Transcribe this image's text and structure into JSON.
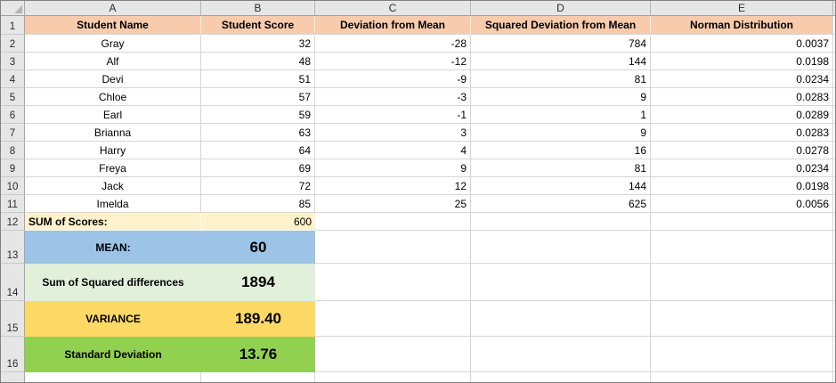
{
  "app": "spreadsheet",
  "colors": {
    "header_fill": "#F8CBAD",
    "sum_fill": "#FFF2CC",
    "mean_fill": "#9DC3E6",
    "squared_diff_fill": "#E2EFDA",
    "variance_fill": "#FFD966",
    "stdev_fill": "#92D050",
    "gutter_fill": "#E6E6E6",
    "gridline": "#D6D6D6"
  },
  "columns": [
    "A",
    "B",
    "C",
    "D",
    "E"
  ],
  "row_numbers": [
    "1",
    "2",
    "3",
    "4",
    "5",
    "6",
    "7",
    "8",
    "9",
    "10",
    "11",
    "12",
    "13",
    "14",
    "15",
    "16"
  ],
  "table": {
    "headers": [
      "Student Name",
      "Student Score",
      "Deviation from Mean",
      "Squared Deviation from Mean",
      "Norman Distribution"
    ],
    "rows": [
      {
        "name": "Gray",
        "score": "32",
        "deviation": "-28",
        "squared": "784",
        "normal": "0.0037"
      },
      {
        "name": "Alf",
        "score": "48",
        "deviation": "-12",
        "squared": "144",
        "normal": "0.0198"
      },
      {
        "name": "Devi",
        "score": "51",
        "deviation": "-9",
        "squared": "81",
        "normal": "0.0234"
      },
      {
        "name": "Chloe",
        "score": "57",
        "deviation": "-3",
        "squared": "9",
        "normal": "0.0283"
      },
      {
        "name": "Earl",
        "score": "59",
        "deviation": "-1",
        "squared": "1",
        "normal": "0.0289"
      },
      {
        "name": "Brianna",
        "score": "63",
        "deviation": "3",
        "squared": "9",
        "normal": "0.0283"
      },
      {
        "name": "Harry",
        "score": "64",
        "deviation": "4",
        "squared": "16",
        "normal": "0.0278"
      },
      {
        "name": "Freya",
        "score": "69",
        "deviation": "9",
        "squared": "81",
        "normal": "0.0234"
      },
      {
        "name": "Jack",
        "score": "72",
        "deviation": "12",
        "squared": "144",
        "normal": "0.0198"
      },
      {
        "name": "Imelda",
        "score": "85",
        "deviation": "25",
        "squared": "625",
        "normal": "0.0056"
      }
    ]
  },
  "summary": {
    "sum": {
      "label": "SUM of Scores:",
      "value": "600"
    },
    "mean": {
      "label": "MEAN:",
      "value": "60"
    },
    "ssd": {
      "label": "Sum of Squared differences",
      "value": "1894"
    },
    "variance": {
      "label": "VARIANCE",
      "value": "189.40"
    },
    "stdev": {
      "label": "Standard Deviation",
      "value": "13.76"
    }
  }
}
